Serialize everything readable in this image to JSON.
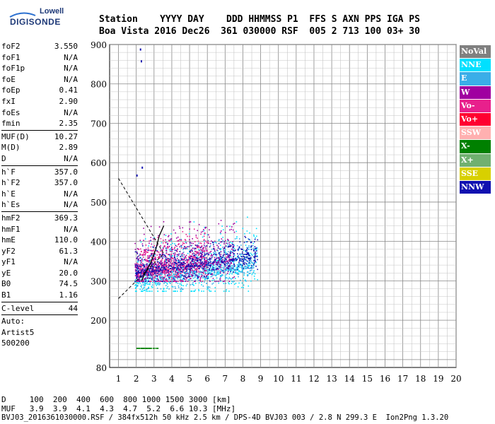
{
  "logo": {
    "brand_top": "Lowell",
    "brand_main": "DIGISONDE"
  },
  "header": {
    "row1": "Station    YYYY DAY    DDD HHMMSS P1  FFS S AXN PPS IGA PS",
    "row2": "Boa Vista 2016 Dec26  361 030000 RSF  005 2 713 100 03+ 30"
  },
  "params": [
    {
      "name": "foF2",
      "value": "3.550",
      "sep_after": false
    },
    {
      "name": "foF1",
      "value": "N/A",
      "sep_after": false
    },
    {
      "name": "foF1p",
      "value": "N/A",
      "sep_after": false
    },
    {
      "name": "foE",
      "value": "N/A",
      "sep_after": false
    },
    {
      "name": "foEp",
      "value": "0.41",
      "sep_after": false
    },
    {
      "name": "fxI",
      "value": "2.90",
      "sep_after": false
    },
    {
      "name": "foEs",
      "value": "N/A",
      "sep_after": false
    },
    {
      "name": "fmin",
      "value": "2.35",
      "sep_after": true
    },
    {
      "name": "MUF(D)",
      "value": "10.27",
      "sep_after": false
    },
    {
      "name": "M(D)",
      "value": "2.89",
      "sep_after": false
    },
    {
      "name": "D",
      "value": "N/A",
      "sep_after": true
    },
    {
      "name": "h`F",
      "value": "357.0",
      "sep_after": false
    },
    {
      "name": "h`F2",
      "value": "357.0",
      "sep_after": false
    },
    {
      "name": "h`E",
      "value": "N/A",
      "sep_after": false
    },
    {
      "name": "h`Es",
      "value": "N/A",
      "sep_after": true
    },
    {
      "name": "hmF2",
      "value": "369.3",
      "sep_after": false
    },
    {
      "name": "hmF1",
      "value": "N/A",
      "sep_after": false
    },
    {
      "name": "hmE",
      "value": "110.0",
      "sep_after": false
    },
    {
      "name": "yF2",
      "value": "61.3",
      "sep_after": false
    },
    {
      "name": "yF1",
      "value": "N/A",
      "sep_after": false
    },
    {
      "name": "yE",
      "value": "20.0",
      "sep_after": false
    },
    {
      "name": "B0",
      "value": "74.5",
      "sep_after": false
    },
    {
      "name": "B1",
      "value": "1.16",
      "sep_after": true
    },
    {
      "name": "C-level",
      "value": "44",
      "sep_after": true
    }
  ],
  "auto": {
    "line1": "Auto:",
    "line2": "Artist5",
    "line3": "500200"
  },
  "legend": [
    {
      "label": "NoVal",
      "color": "#808080"
    },
    {
      "label": "NNE",
      "color": "#00e0ff"
    },
    {
      "label": "E",
      "color": "#3aaee8"
    },
    {
      "label": "W",
      "color": "#a000a0"
    },
    {
      "label": "Vo-",
      "color": "#e8208c"
    },
    {
      "label": "Vo+",
      "color": "#ff0030"
    },
    {
      "label": "SSW",
      "color": "#ffb0b0"
    },
    {
      "label": "X-",
      "color": "#008000"
    },
    {
      "label": "X+",
      "color": "#70b070"
    },
    {
      "label": "SSE",
      "color": "#d8d000"
    },
    {
      "label": "NNW",
      "color": "#1010b0"
    }
  ],
  "footer": {
    "line1": "D     100  200  400  600  800 1000 1500 3000 [km]",
    "line2": "MUF   3.9  3.9  4.1  4.3  4.7  5.2  6.6 10.3 [MHz]",
    "line3": "BVJ03_2016361030000.RSF / 384fx512h 50 kHz 2.5 km / DPS-4D BVJ03 003 / 2.8 N 299.3 E  Ion2Png 1.3.20"
  },
  "chart_data": {
    "type": "scatter",
    "title": "",
    "xlabel": "",
    "ylabel": "",
    "xlim": [
      1,
      20
    ],
    "ylim": [
      80,
      900
    ],
    "x_ticks": [
      1,
      2,
      3,
      4,
      5,
      6,
      7,
      8,
      9,
      10,
      11,
      12,
      13,
      14,
      15,
      16,
      17,
      18,
      19,
      20
    ],
    "y_ticks": [
      100,
      200,
      300,
      400,
      500,
      600,
      700,
      800,
      900
    ],
    "y_tick_labels_shown": [
      80,
      200,
      300,
      400,
      500,
      600,
      700,
      800,
      900
    ],
    "grid": true,
    "description_series": [
      {
        "name": "NNE",
        "color": "#00e0ff",
        "region": {
          "x": [
            1.9,
            8.8
          ],
          "y": [
            275,
            520
          ]
        }
      },
      {
        "name": "E",
        "color": "#3aaee8",
        "region": {
          "x": [
            2.0,
            8.6
          ],
          "y": [
            280,
            430
          ]
        }
      },
      {
        "name": "W",
        "color": "#a000a0",
        "region": {
          "x": [
            1.9,
            7.5
          ],
          "y": [
            300,
            520
          ]
        }
      },
      {
        "name": "Vo-",
        "color": "#e8208c",
        "region": {
          "x": [
            2.0,
            6.0
          ],
          "y": [
            300,
            470
          ]
        }
      },
      {
        "name": "NNW",
        "color": "#1010b0",
        "region": {
          "x": [
            1.9,
            8.8
          ],
          "y": [
            300,
            420
          ]
        }
      },
      {
        "name": "X-",
        "color": "#008000",
        "region": {
          "x": [
            2.0,
            3.2
          ],
          "y": [
            125,
            130
          ]
        }
      }
    ],
    "traced_profile": {
      "x": [
        2.3,
        2.5,
        2.8,
        3.1,
        3.3,
        3.55
      ],
      "y": [
        300,
        320,
        345,
        380,
        415,
        440
      ]
    },
    "guide_lines": [
      {
        "x": [
          1.0,
          3.55
        ],
        "y": [
          560,
          369
        ]
      },
      {
        "x": [
          1.0,
          3.55
        ],
        "y": [
          255,
          369
        ]
      }
    ],
    "isolated_points": [
      {
        "x": 2.2,
        "y": 890,
        "color": "#1010b0"
      },
      {
        "x": 2.25,
        "y": 860,
        "color": "#1010b0"
      },
      {
        "x": 2.3,
        "y": 590,
        "color": "#1010b0"
      },
      {
        "x": 2.0,
        "y": 570,
        "color": "#1010b0"
      }
    ]
  }
}
